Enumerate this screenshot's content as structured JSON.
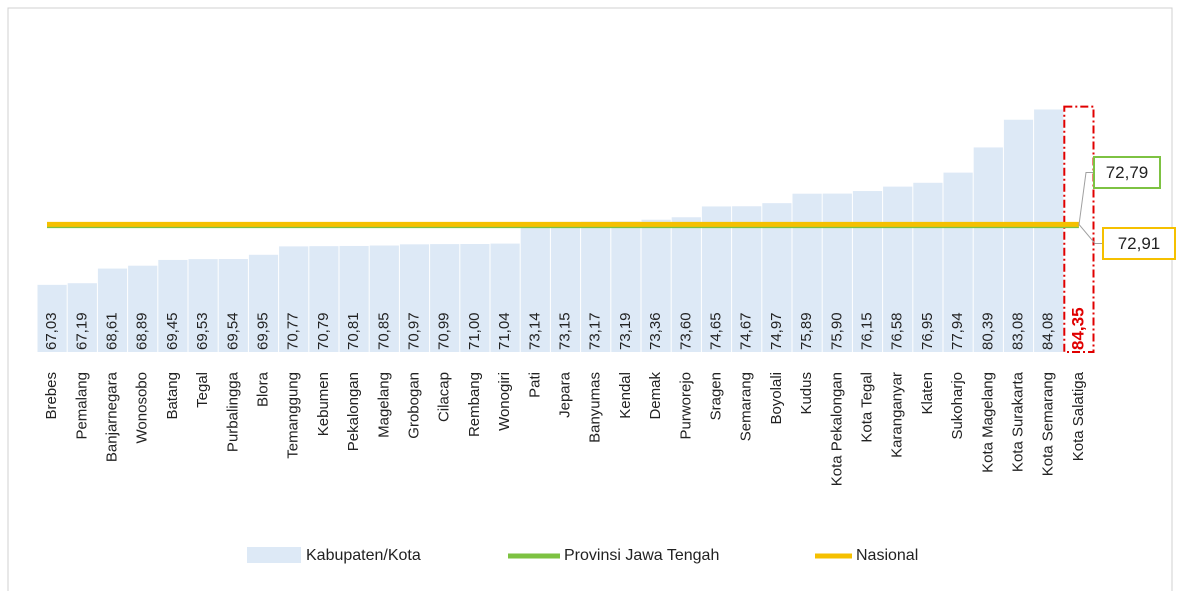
{
  "chart_data": {
    "type": "bar",
    "categories": [
      "Brebes",
      "Pemalang",
      "Banjarnegara",
      "Wonosobo",
      "Batang",
      "Tegal",
      "Purbalingga",
      "Blora",
      "Temanggung",
      "Kebumen",
      "Pekalongan",
      "Magelang",
      "Grobogan",
      "Cilacap",
      "Rembang",
      "Wonogiri",
      "Pati",
      "Jepara",
      "Banyumas",
      "Kendal",
      "Demak",
      "Purworejo",
      "Sragen",
      "Semarang",
      "Boyolali",
      "Kudus",
      "Kota Pekalongan",
      "Kota Tegal",
      "Karanganyar",
      "Klaten",
      "Sukoharjo",
      "Kota Magelang",
      "Kota Surakarta",
      "Kota Semarang",
      "Kota Salatiga"
    ],
    "series": [
      {
        "name": "Kabupaten/Kota",
        "color": "#dde9f6",
        "values": [
          67.03,
          67.19,
          68.61,
          68.89,
          69.45,
          69.53,
          69.54,
          69.95,
          70.77,
          70.79,
          70.81,
          70.85,
          70.97,
          70.99,
          71.0,
          71.04,
          73.14,
          73.15,
          73.17,
          73.19,
          73.36,
          73.6,
          74.65,
          74.67,
          74.97,
          75.89,
          75.9,
          76.15,
          76.58,
          76.95,
          77.94,
          80.39,
          83.08,
          84.08,
          84.35
        ],
        "value_labels": [
          "67,03",
          "67,19",
          "68,61",
          "68,89",
          "69,45",
          "69,53",
          "69,54",
          "69,95",
          "70,77",
          "70,79",
          "70,81",
          "70,85",
          "70,97",
          "70,99",
          "71,00",
          "71,04",
          "73,14",
          "73,15",
          "73,17",
          "73,19",
          "73,36",
          "73,60",
          "74,65",
          "74,67",
          "74,97",
          "75,89",
          "75,90",
          "76,15",
          "76,58",
          "76,95",
          "77,94",
          "80,39",
          "83,08",
          "84,08",
          "84,35"
        ]
      },
      {
        "name": "Provinsi Jawa Tengah",
        "color": "#7dc242",
        "value": 72.79,
        "value_label": "72,79"
      },
      {
        "name": "Nasional",
        "color": "#f5c000",
        "value": 72.91,
        "value_label": "72,91"
      }
    ],
    "highlight_index": 34,
    "highlight_color": "#e00000",
    "ylim": [
      60.5,
      85
    ]
  }
}
